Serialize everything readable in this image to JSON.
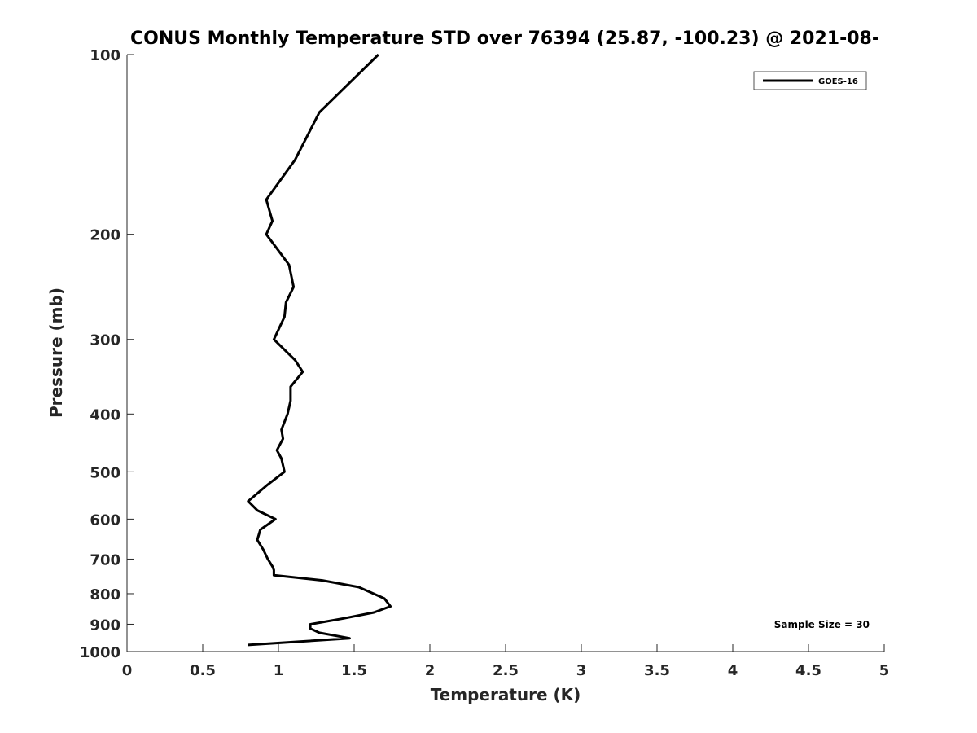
{
  "chart_data": {
    "type": "line",
    "title": "CONUS Monthly Temperature STD over 76394 (25.87, -100.23) @ 2021-08-",
    "xlabel": "Temperature (K)",
    "ylabel": "Pressure (mb)",
    "xlim": [
      0,
      5
    ],
    "ylim": [
      100,
      1000
    ],
    "y_scale": "log",
    "y_reversed": true,
    "x_ticks": [
      0,
      0.5,
      1,
      1.5,
      2,
      2.5,
      3,
      3.5,
      4,
      4.5,
      5
    ],
    "x_tick_labels": [
      "0",
      "0.5",
      "1",
      "1.5",
      "2",
      "2.5",
      "3",
      "3.5",
      "4",
      "4.5",
      "5"
    ],
    "y_ticks": [
      100,
      200,
      300,
      400,
      500,
      600,
      700,
      800,
      900,
      1000
    ],
    "y_tick_labels": [
      "100",
      "200",
      "300",
      "400",
      "500",
      "600",
      "700",
      "800",
      "900",
      "1000"
    ],
    "grid": false,
    "legend_position": "top-right",
    "annotation": "Sample Size = 30",
    "series": [
      {
        "name": "GOES-16",
        "color": "#000000",
        "points": [
          [
            1.66,
            100
          ],
          [
            1.27,
            125
          ],
          [
            1.11,
            150
          ],
          [
            0.92,
            175
          ],
          [
            0.96,
            190
          ],
          [
            0.92,
            200
          ],
          [
            1.07,
            225
          ],
          [
            1.1,
            245
          ],
          [
            1.05,
            260
          ],
          [
            1.04,
            275
          ],
          [
            0.97,
            300
          ],
          [
            1.11,
            325
          ],
          [
            1.16,
            340
          ],
          [
            1.08,
            360
          ],
          [
            1.08,
            380
          ],
          [
            1.06,
            400
          ],
          [
            1.02,
            425
          ],
          [
            1.03,
            440
          ],
          [
            0.99,
            460
          ],
          [
            1.02,
            475
          ],
          [
            1.04,
            500
          ],
          [
            0.93,
            525
          ],
          [
            0.8,
            560
          ],
          [
            0.86,
            580
          ],
          [
            0.98,
            600
          ],
          [
            0.88,
            625
          ],
          [
            0.86,
            650
          ],
          [
            0.9,
            675
          ],
          [
            0.93,
            700
          ],
          [
            0.96,
            720
          ],
          [
            0.97,
            730
          ],
          [
            0.97,
            745
          ],
          [
            1.29,
            760
          ],
          [
            1.53,
            780
          ],
          [
            1.7,
            815
          ],
          [
            1.74,
            840
          ],
          [
            1.63,
            860
          ],
          [
            1.43,
            880
          ],
          [
            1.21,
            900
          ],
          [
            1.21,
            915
          ],
          [
            1.27,
            930
          ],
          [
            1.47,
            950
          ],
          [
            0.8,
            975
          ]
        ]
      }
    ]
  }
}
